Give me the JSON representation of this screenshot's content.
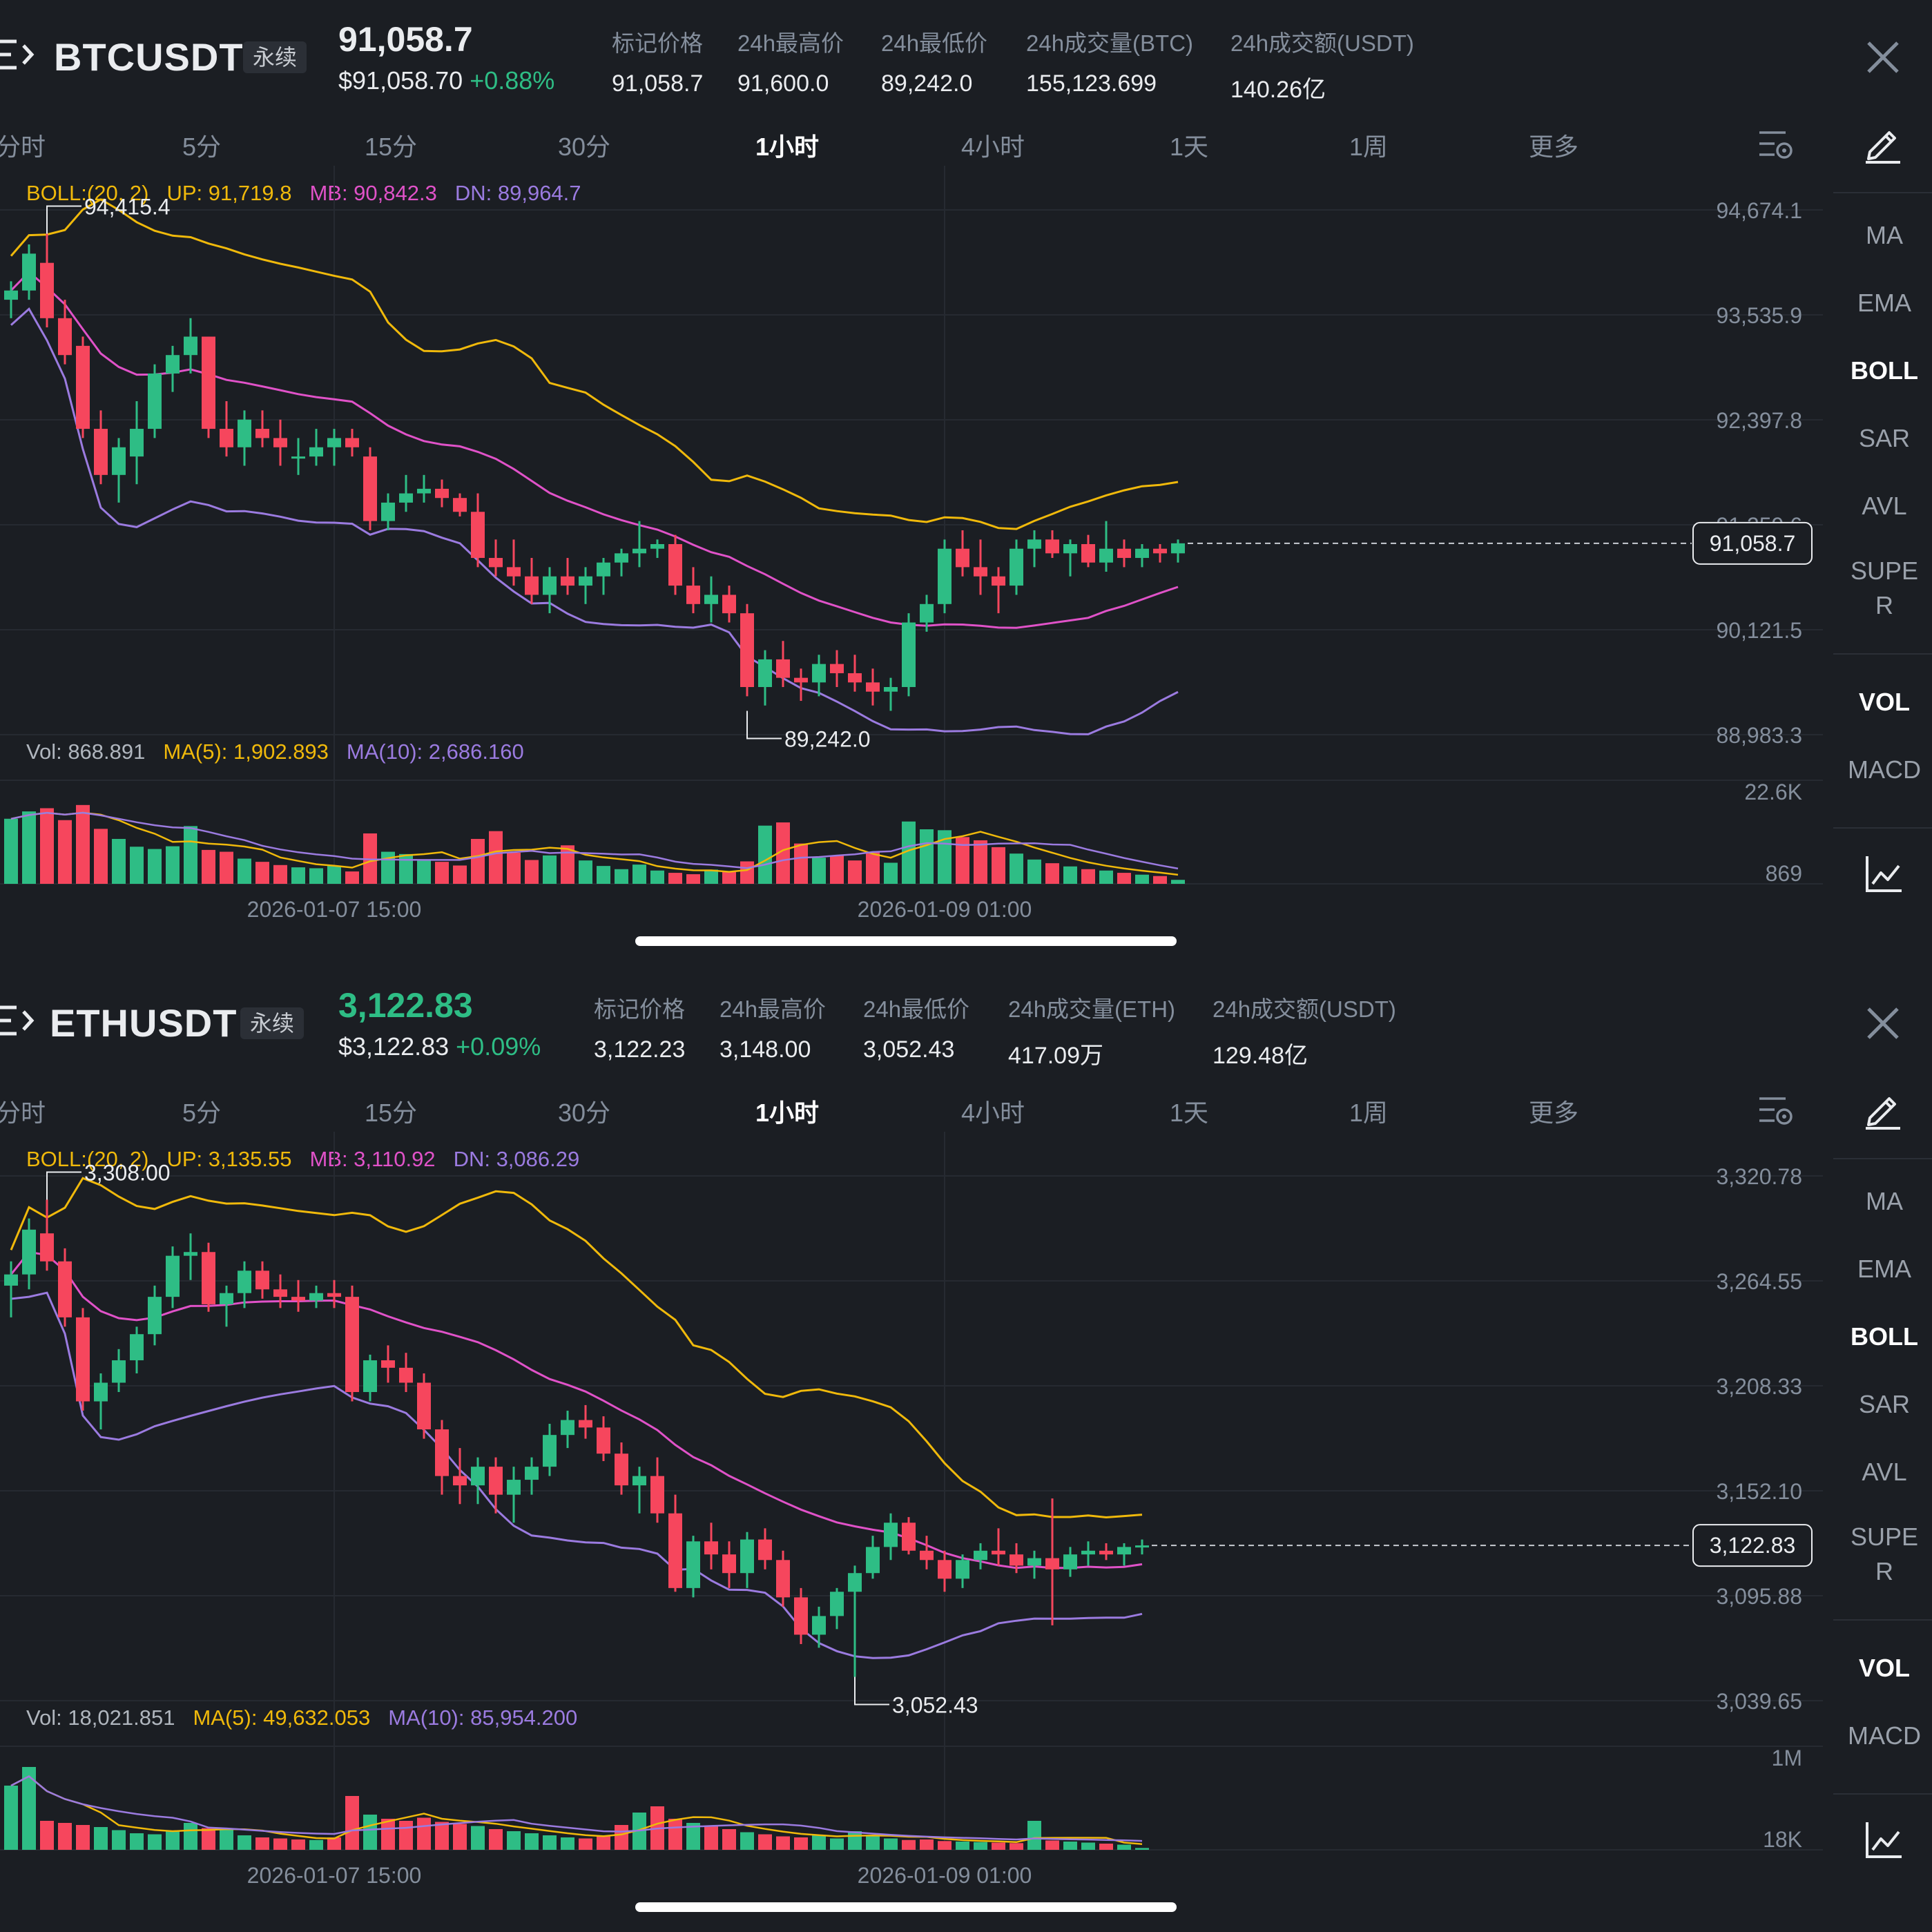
{
  "panels": [
    {
      "symbol": "BTCUSDT",
      "badge": "永续",
      "price": "91,058.7",
      "price_green": false,
      "sub_price": "$91,058.70",
      "change": "+0.88%",
      "stats": [
        {
          "label": "标记价格",
          "value": "91,058.7"
        },
        {
          "label": "24h最高价",
          "value": "91,600.0"
        },
        {
          "label": "24h最低价",
          "value": "89,242.0"
        },
        {
          "label": "24h成交量(BTC)",
          "value": "155,123.699"
        },
        {
          "label": "24h成交额(USDT)",
          "value": "140.26亿"
        }
      ],
      "timeframes": [
        "分时",
        "5分",
        "15分",
        "30分",
        "1小时",
        "4小时",
        "1天",
        "1周",
        "更多"
      ],
      "active_timeframe": "1小时",
      "boll_legend": {
        "name": "BOLL:(20, 2)",
        "up": "UP: 91,719.8",
        "mb": "MB: 90,842.3",
        "dn": "DN: 89,964.7"
      },
      "vol_legend": {
        "vol": "Vol: 868.891",
        "ma5": "MA(5): 1,902.893",
        "ma10": "MA(10): 2,686.160"
      },
      "tools": [
        "MA",
        "EMA",
        "BOLL",
        "SAR",
        "AVL",
        "SUPE",
        "R",
        "VOL",
        "MACD"
      ],
      "active_tools": [
        "BOLL",
        "VOL"
      ]
    },
    {
      "symbol": "ETHUSDT",
      "badge": "永续",
      "price": "3,122.83",
      "price_green": true,
      "sub_price": "$3,122.83",
      "change": "+0.09%",
      "stats": [
        {
          "label": "标记价格",
          "value": "3,122.23"
        },
        {
          "label": "24h最高价",
          "value": "3,148.00"
        },
        {
          "label": "24h最低价",
          "value": "3,052.43"
        },
        {
          "label": "24h成交量(ETH)",
          "value": "417.09万"
        },
        {
          "label": "24h成交额(USDT)",
          "value": "129.48亿"
        }
      ],
      "timeframes": [
        "分时",
        "5分",
        "15分",
        "30分",
        "1小时",
        "4小时",
        "1天",
        "1周",
        "更多"
      ],
      "active_timeframe": "1小时",
      "boll_legend": {
        "name": "BOLL:(20, 2)",
        "up": "UP: 3,135.55",
        "mb": "MB: 3,110.92",
        "dn": "DN: 3,086.29"
      },
      "vol_legend": {
        "vol": "Vol: 18,021.851",
        "ma5": "MA(5): 49,632.053",
        "ma10": "MA(10): 85,954.200"
      },
      "tools": [
        "MA",
        "EMA",
        "BOLL",
        "SAR",
        "AVL",
        "SUPE",
        "R",
        "VOL",
        "MACD"
      ],
      "active_tools": [
        "BOLL",
        "VOL"
      ]
    }
  ],
  "colors": {
    "up": "#2ebd85",
    "down": "#f6465d",
    "boll_up": "#f0b90b",
    "boll_mb": "#e052c8",
    "boll_dn": "#9b7be0",
    "bg": "#1b1e23",
    "grid": "#262a31"
  },
  "chart_data": [
    {
      "type": "candlestick",
      "symbol": "BTCUSDT",
      "interval": "1小时",
      "price_axis": [
        "94,674.1",
        "93,535.9",
        "92,397.8",
        "91,259.6",
        "90,121.5",
        "88,983.3"
      ],
      "ylim": [
        88983.3,
        94674.1
      ],
      "volume_axis": [
        "22.6K",
        "869"
      ],
      "vol_max": 22600,
      "time_labels": [
        "2026-01-07 15:00",
        "2026-01-09 01:00"
      ],
      "last_price_label": "91,058.7",
      "last_price": 91058.7,
      "high_marker": {
        "label": "94,415.4",
        "value": 94415.4,
        "index": 2
      },
      "low_marker": {
        "label": "89,242.0",
        "value": 89242.0,
        "index": 41
      },
      "candles": [
        [
          93700,
          93900,
          93500,
          93800
        ],
        [
          93800,
          94300,
          93700,
          94200
        ],
        [
          94100,
          94415.4,
          93400,
          93500
        ],
        [
          93500,
          93700,
          93000,
          93100
        ],
        [
          93200,
          93300,
          92200,
          92300
        ],
        [
          92300,
          92500,
          91700,
          91800
        ],
        [
          91800,
          92200,
          91500,
          92100
        ],
        [
          92000,
          92600,
          91700,
          92300
        ],
        [
          92300,
          93000,
          92200,
          92900
        ],
        [
          92900,
          93200,
          92700,
          93100
        ],
        [
          93100,
          93500,
          92900,
          93300
        ],
        [
          93300,
          93300,
          92200,
          92300
        ],
        [
          92300,
          92600,
          92000,
          92100
        ],
        [
          92100,
          92500,
          91900,
          92400
        ],
        [
          92300,
          92500,
          92100,
          92200
        ],
        [
          92200,
          92400,
          91900,
          92100
        ],
        [
          92000,
          92200,
          91800,
          92000
        ],
        [
          92000,
          92300,
          91900,
          92100
        ],
        [
          92100,
          92300,
          91900,
          92200
        ],
        [
          92200,
          92300,
          92000,
          92100
        ],
        [
          92000,
          92100,
          91200,
          91300
        ],
        [
          91300,
          91600,
          91200,
          91500
        ],
        [
          91500,
          91800,
          91400,
          91600
        ],
        [
          91600,
          91800,
          91500,
          91650
        ],
        [
          91650,
          91750,
          91450,
          91550
        ],
        [
          91550,
          91600,
          91350,
          91400
        ],
        [
          91400,
          91600,
          90800,
          90900
        ],
        [
          90900,
          91100,
          90700,
          90800
        ],
        [
          90800,
          91100,
          90600,
          90700
        ],
        [
          90700,
          90900,
          90400,
          90500
        ],
        [
          90500,
          90800,
          90300,
          90700
        ],
        [
          90700,
          90900,
          90500,
          90600
        ],
        [
          90600,
          90800,
          90400,
          90700
        ],
        [
          90700,
          90900,
          90500,
          90850
        ],
        [
          90850,
          91000,
          90700,
          90950
        ],
        [
          90950,
          91300,
          90800,
          91000
        ],
        [
          91000,
          91100,
          90900,
          91050
        ],
        [
          91050,
          91150,
          90500,
          90600
        ],
        [
          90600,
          90800,
          90300,
          90400
        ],
        [
          90400,
          90700,
          90200,
          90500
        ],
        [
          90500,
          90600,
          90200,
          90300
        ],
        [
          90300,
          90400,
          89400,
          89500
        ],
        [
          89500,
          89900,
          89300,
          89800
        ],
        [
          89800,
          90000,
          89500,
          89600
        ],
        [
          89600,
          89700,
          89350,
          89550
        ],
        [
          89550,
          89850,
          89400,
          89750
        ],
        [
          89750,
          89900,
          89500,
          89650
        ],
        [
          89650,
          89850,
          89450,
          89550
        ],
        [
          89550,
          89700,
          89300,
          89450
        ],
        [
          89450,
          89600,
          89242,
          89500
        ],
        [
          89500,
          90300,
          89400,
          90200
        ],
        [
          90200,
          90500,
          90100,
          90400
        ],
        [
          90400,
          91100,
          90300,
          91000
        ],
        [
          91000,
          91200,
          90700,
          90800
        ],
        [
          90800,
          91100,
          90500,
          90700
        ],
        [
          90700,
          90800,
          90300,
          90600
        ],
        [
          90600,
          91100,
          90500,
          91000
        ],
        [
          91000,
          91200,
          90800,
          91100
        ],
        [
          91100,
          91200,
          90900,
          90950
        ],
        [
          90950,
          91100,
          90700,
          91050
        ],
        [
          91050,
          91150,
          90800,
          90850
        ],
        [
          90850,
          91300,
          90750,
          91000
        ],
        [
          91000,
          91100,
          90800,
          90900
        ],
        [
          90900,
          91050,
          90800,
          91000
        ],
        [
          91000,
          91050,
          90850,
          90950
        ],
        [
          90950,
          91100,
          90850,
          91058.7
        ]
      ],
      "volumes": [
        14200,
        15800,
        16500,
        13900,
        17200,
        12000,
        9800,
        8100,
        7600,
        8200,
        12600,
        7400,
        7000,
        5500,
        4800,
        4100,
        3600,
        3400,
        3900,
        2700,
        11000,
        7000,
        6500,
        5200,
        4800,
        4000,
        9800,
        11500,
        6800,
        5200,
        6200,
        8400,
        5100,
        3900,
        3200,
        4200,
        2900,
        2400,
        2100,
        3100,
        2600,
        4900,
        12700,
        13400,
        8800,
        5700,
        6100,
        5100,
        7000,
        4600,
        13600,
        11900,
        11700,
        10200,
        9500,
        8000,
        6600,
        5300,
        4500,
        3800,
        3200,
        2900,
        2400,
        2000,
        1700,
        868.891
      ]
    },
    {
      "type": "candlestick",
      "symbol": "ETHUSDT",
      "interval": "1小时",
      "price_axis": [
        "3,320.78",
        "3,264.55",
        "3,208.33",
        "3,152.10",
        "3,095.88",
        "3,039.65"
      ],
      "ylim": [
        3039.65,
        3320.78
      ],
      "volume_axis": [
        "1M",
        "18K"
      ],
      "vol_max": 1000000,
      "time_labels": [
        "2026-01-07 15:00",
        "2026-01-09 01:00"
      ],
      "last_price_label": "3,122.83",
      "last_price": 3122.83,
      "high_marker": {
        "label": "3,308.00",
        "value": 3308.0,
        "index": 2
      },
      "low_marker": {
        "label": "3,052.43",
        "value": 3052.43,
        "index": 47
      },
      "candles": [
        [
          3262,
          3275,
          3245,
          3268
        ],
        [
          3268,
          3298,
          3260,
          3292
        ],
        [
          3290,
          3308,
          3270,
          3275
        ],
        [
          3275,
          3282,
          3240,
          3245
        ],
        [
          3245,
          3250,
          3195,
          3200
        ],
        [
          3200,
          3215,
          3185,
          3210
        ],
        [
          3210,
          3228,
          3205,
          3222
        ],
        [
          3222,
          3240,
          3215,
          3236
        ],
        [
          3236,
          3262,
          3230,
          3256
        ],
        [
          3256,
          3283,
          3250,
          3278
        ],
        [
          3278,
          3290,
          3265,
          3280
        ],
        [
          3280,
          3285,
          3248,
          3252
        ],
        [
          3252,
          3262,
          3240,
          3258
        ],
        [
          3258,
          3275,
          3250,
          3270
        ],
        [
          3270,
          3275,
          3255,
          3260
        ],
        [
          3260,
          3268,
          3250,
          3256
        ],
        [
          3256,
          3265,
          3248,
          3254
        ],
        [
          3254,
          3262,
          3250,
          3258
        ],
        [
          3258,
          3265,
          3250,
          3256
        ],
        [
          3256,
          3262,
          3200,
          3205
        ],
        [
          3205,
          3225,
          3200,
          3222
        ],
        [
          3222,
          3230,
          3210,
          3218
        ],
        [
          3218,
          3226,
          3205,
          3210
        ],
        [
          3210,
          3215,
          3180,
          3185
        ],
        [
          3185,
          3190,
          3150,
          3160
        ],
        [
          3160,
          3175,
          3145,
          3155
        ],
        [
          3155,
          3170,
          3145,
          3165
        ],
        [
          3165,
          3170,
          3140,
          3150
        ],
        [
          3150,
          3165,
          3135,
          3158
        ],
        [
          3158,
          3170,
          3150,
          3165
        ],
        [
          3165,
          3188,
          3160,
          3182
        ],
        [
          3182,
          3195,
          3175,
          3190
        ],
        [
          3190,
          3198,
          3180,
          3186
        ],
        [
          3186,
          3192,
          3168,
          3172
        ],
        [
          3172,
          3178,
          3150,
          3155
        ],
        [
          3155,
          3165,
          3140,
          3160
        ],
        [
          3160,
          3170,
          3135,
          3140
        ],
        [
          3140,
          3150,
          3098,
          3100
        ],
        [
          3100,
          3128,
          3095,
          3125
        ],
        [
          3125,
          3135,
          3110,
          3118
        ],
        [
          3118,
          3125,
          3100,
          3108
        ],
        [
          3108,
          3130,
          3100,
          3126
        ],
        [
          3126,
          3132,
          3110,
          3115
        ],
        [
          3115,
          3120,
          3090,
          3095
        ],
        [
          3095,
          3100,
          3070,
          3075
        ],
        [
          3075,
          3090,
          3068,
          3085
        ],
        [
          3085,
          3100,
          3078,
          3098
        ],
        [
          3098,
          3112,
          3052.43,
          3108
        ],
        [
          3108,
          3128,
          3105,
          3122
        ],
        [
          3122,
          3140,
          3115,
          3135
        ],
        [
          3135,
          3138,
          3118,
          3120
        ],
        [
          3120,
          3128,
          3110,
          3115
        ],
        [
          3115,
          3120,
          3098,
          3105
        ],
        [
          3105,
          3118,
          3100,
          3115
        ],
        [
          3115,
          3124,
          3110,
          3120
        ],
        [
          3120,
          3132,
          3112,
          3118
        ],
        [
          3118,
          3124,
          3108,
          3112
        ],
        [
          3112,
          3120,
          3105,
          3116
        ],
        [
          3116,
          3148,
          3080,
          3110
        ],
        [
          3110,
          3122,
          3106,
          3118
        ],
        [
          3118,
          3125,
          3112,
          3120
        ],
        [
          3120,
          3124,
          3115,
          3118
        ],
        [
          3118,
          3124,
          3112,
          3122
        ],
        [
          3122,
          3126,
          3118,
          3122.83
        ]
      ],
      "volumes": [
        620000,
        800000,
        280000,
        260000,
        240000,
        220000,
        190000,
        160000,
        150000,
        180000,
        260000,
        210000,
        200000,
        140000,
        120000,
        110000,
        100000,
        95000,
        120000,
        520000,
        340000,
        300000,
        280000,
        310000,
        270000,
        250000,
        230000,
        200000,
        180000,
        160000,
        140000,
        120000,
        110000,
        130000,
        240000,
        360000,
        420000,
        300000,
        260000,
        230000,
        200000,
        170000,
        150000,
        130000,
        120000,
        140000,
        110000,
        180000,
        140000,
        110000,
        95000,
        100000,
        85000,
        80000,
        75000,
        70000,
        65000,
        280000,
        90000,
        80000,
        70000,
        60000,
        50000,
        18021.851
      ]
    }
  ]
}
